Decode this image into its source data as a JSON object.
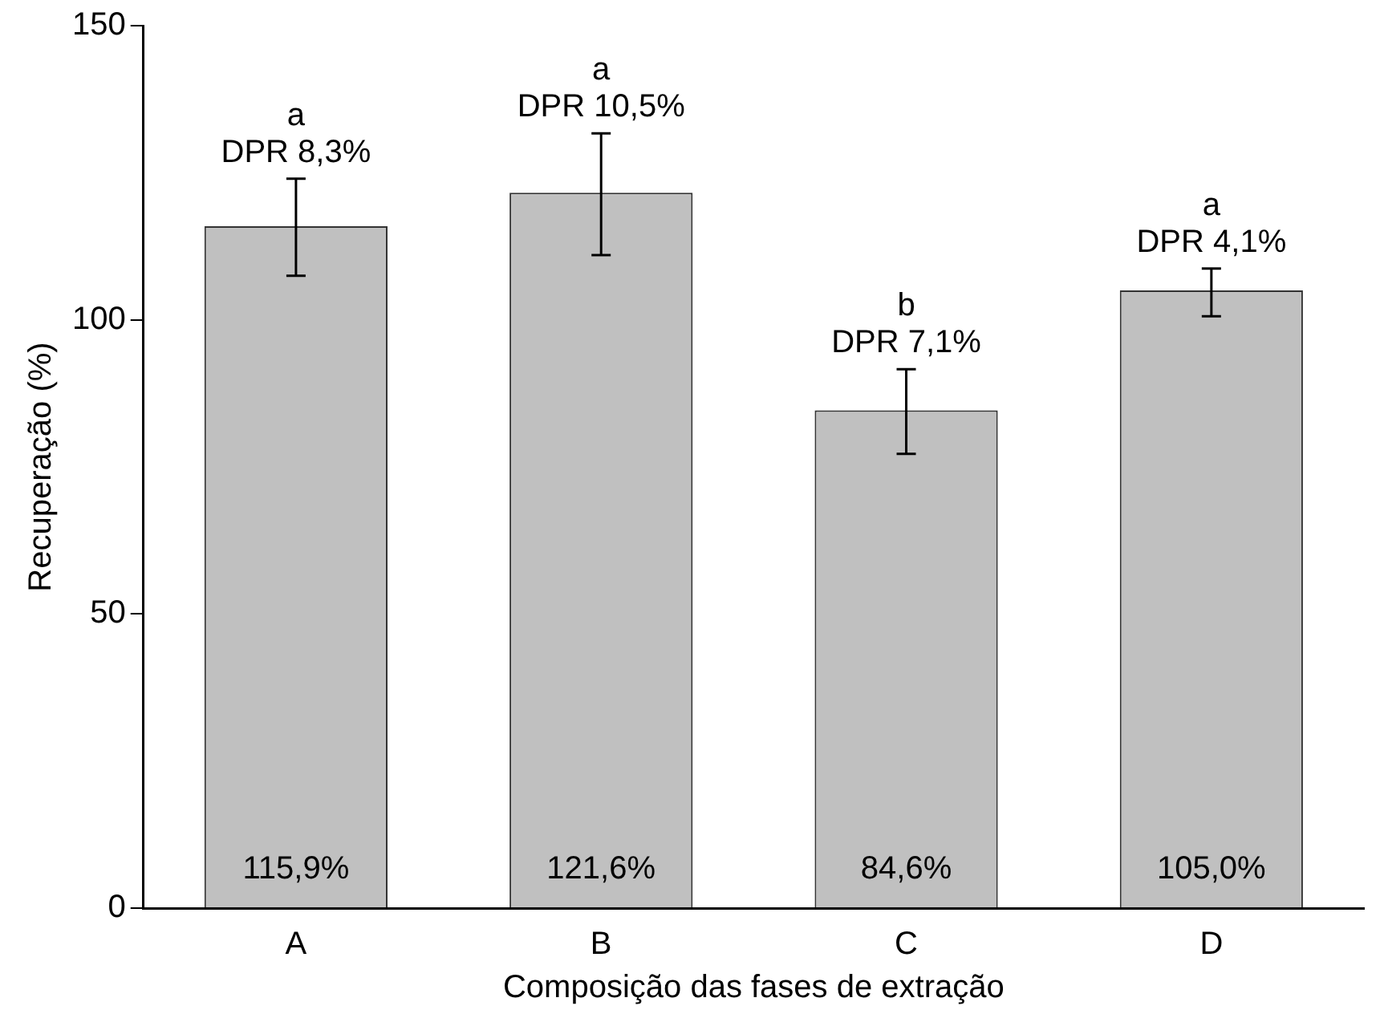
{
  "chart_data": {
    "type": "bar",
    "xlabel": "Composição das fases de extração",
    "ylabel": "Recuperação (%)",
    "categories": [
      "A",
      "B",
      "C",
      "D"
    ],
    "values": [
      115.9,
      121.6,
      84.6,
      105.0
    ],
    "value_labels": [
      "115,9%",
      "121,6%",
      "84,6%",
      "105,0%"
    ],
    "errors": [
      [
        107.5,
        124
      ],
      [
        111,
        131.7
      ],
      [
        77.2,
        91.6
      ],
      [
        100.6,
        108.7
      ]
    ],
    "color": "#c0c0c0",
    "ylim": [
      0,
      150
    ],
    "yticks": [
      0,
      50,
      100,
      150
    ],
    "grid": false,
    "legend": false,
    "annotations": [
      {
        "text": "a\nDPR 8,3%",
        "x": "A",
        "y": 124
      },
      {
        "text": "a\nDPR 10,5%",
        "x": "B",
        "y": 131.7
      },
      {
        "text": "b\nDPR 7,1%",
        "x": "C",
        "y": 91.6
      },
      {
        "text": "a\nDPR 4,1%",
        "x": "D",
        "y": 108.7
      }
    ]
  }
}
